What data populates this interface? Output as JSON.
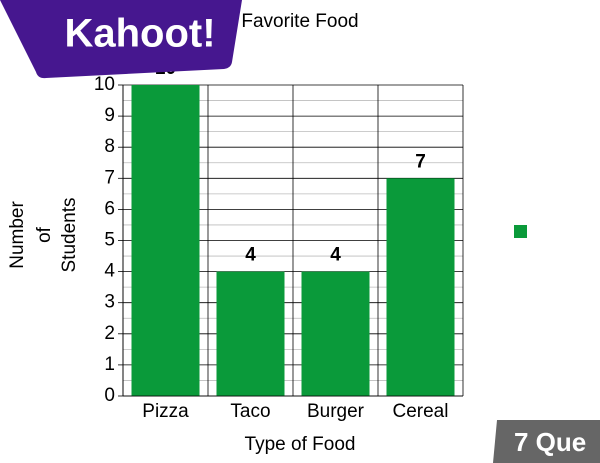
{
  "logo": "Kahoot!",
  "badge": "7 Que",
  "chart_data": {
    "type": "bar",
    "title": "Favorite Food",
    "x_label": "Type of Food",
    "y_label": [
      "Number",
      "of",
      "Students"
    ],
    "categories": [
      "Pizza",
      "Taco",
      "Burger",
      "Cereal"
    ],
    "values": [
      10,
      4,
      4,
      7
    ],
    "color": "#0a9a3a",
    "ylim": [
      0,
      10
    ],
    "yticks": [
      0,
      1,
      2,
      3,
      4,
      5,
      6,
      7,
      8,
      9,
      10
    ],
    "grid": true
  }
}
